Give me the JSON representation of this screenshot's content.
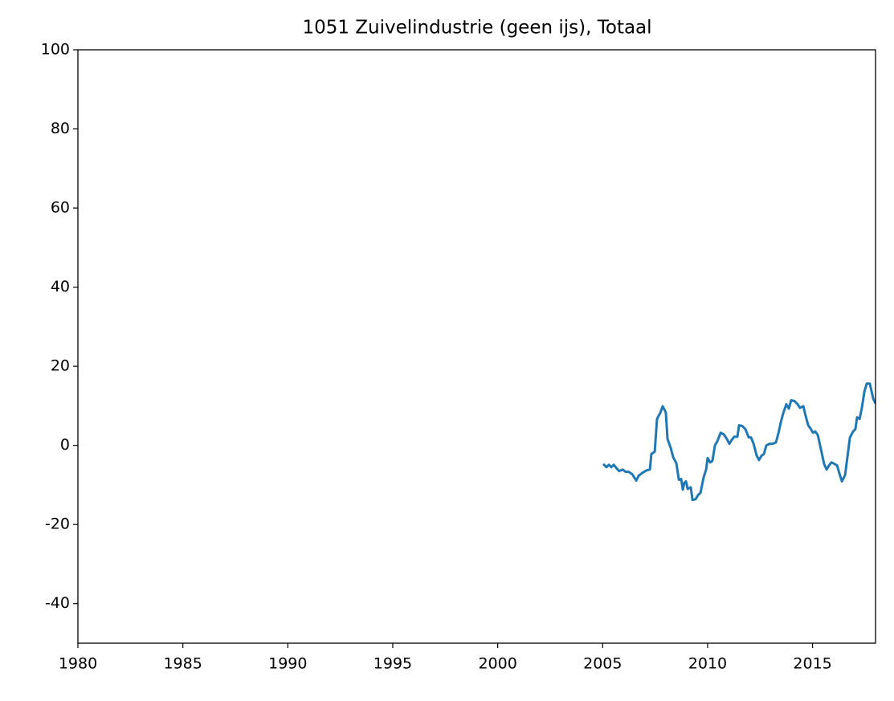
{
  "chart_data": {
    "type": "line",
    "title": "1051 Zuivelindustrie (geen ijs), Totaal",
    "series": [
      {
        "color": "#1f77b4",
        "x": [
          2005.03,
          2005.18,
          2005.3,
          2005.41,
          2005.53,
          2005.68,
          2005.79,
          2005.95,
          2006.1,
          2006.25,
          2006.41,
          2006.6,
          2006.71,
          2006.9,
          2007.1,
          2007.25,
          2007.32,
          2007.48,
          2007.59,
          2007.75,
          2007.86,
          2008.01,
          2008.09,
          2008.24,
          2008.36,
          2008.51,
          2008.63,
          2008.74,
          2008.82,
          2008.89,
          2008.97,
          2009.05,
          2009.2,
          2009.28,
          2009.43,
          2009.54,
          2009.66,
          2009.81,
          2009.93,
          2010.0,
          2010.12,
          2010.23,
          2010.35,
          2010.46,
          2010.62,
          2010.77,
          2010.92,
          2011.04,
          2011.15,
          2011.27,
          2011.42,
          2011.5,
          2011.65,
          2011.8,
          2011.96,
          2012.07,
          2012.19,
          2012.34,
          2012.45,
          2012.57,
          2012.68,
          2012.8,
          2012.95,
          2013.1,
          2013.26,
          2013.37,
          2013.49,
          2013.6,
          2013.75,
          2013.87,
          2013.98,
          2014.14,
          2014.29,
          2014.4,
          2014.56,
          2014.67,
          2014.79,
          2014.9,
          2015.02,
          2015.13,
          2015.25,
          2015.4,
          2015.55,
          2015.67,
          2015.78,
          2015.9,
          2016.05,
          2016.17,
          2016.28,
          2016.4,
          2016.55,
          2016.66,
          2016.78,
          2016.93,
          2017.04,
          2017.12,
          2017.24,
          2017.35,
          2017.47,
          2017.58,
          2017.73,
          2017.89,
          2018.0
        ],
        "values": [
          -4.7,
          -5.5,
          -4.9,
          -5.5,
          -4.9,
          -5.9,
          -6.5,
          -6.1,
          -6.7,
          -6.7,
          -7.3,
          -8.9,
          -7.7,
          -6.9,
          -6.3,
          -6.1,
          -2.2,
          -1.6,
          6.7,
          8.3,
          9.9,
          8.3,
          1.6,
          -0.6,
          -3.0,
          -4.5,
          -8.7,
          -8.5,
          -11.2,
          -9.5,
          -9.1,
          -11.0,
          -10.6,
          -13.8,
          -13.6,
          -12.6,
          -12.0,
          -8.1,
          -6.1,
          -3.2,
          -4.3,
          -3.9,
          0,
          1.0,
          3.2,
          2.8,
          1.6,
          0.4,
          1.4,
          2.2,
          2.2,
          5.1,
          4.9,
          4.1,
          2.0,
          2.0,
          0.4,
          -2.6,
          -3.7,
          -2.6,
          -2.2,
          0,
          0.4,
          0.4,
          0.8,
          3.0,
          5.9,
          8.1,
          10.4,
          9.3,
          11.4,
          11.2,
          10.4,
          9.5,
          9.9,
          7.5,
          5.1,
          4.3,
          3.2,
          3.5,
          2.6,
          -1.0,
          -4.7,
          -6.1,
          -5.1,
          -4.3,
          -4.7,
          -5.1,
          -7.1,
          -9.1,
          -7.5,
          -3.0,
          2.0,
          3.5,
          4.1,
          7.1,
          6.7,
          9.5,
          13.6,
          15.6,
          15.6,
          11.8,
          10.6
        ]
      }
    ],
    "xlim": [
      1980,
      2018
    ],
    "xticks": [
      1980,
      1985,
      1990,
      1995,
      2000,
      2005,
      2010,
      2015
    ],
    "ylim": [
      -50,
      100
    ],
    "yticks": [
      -40,
      -20,
      0,
      20,
      40,
      60,
      80,
      100
    ]
  }
}
